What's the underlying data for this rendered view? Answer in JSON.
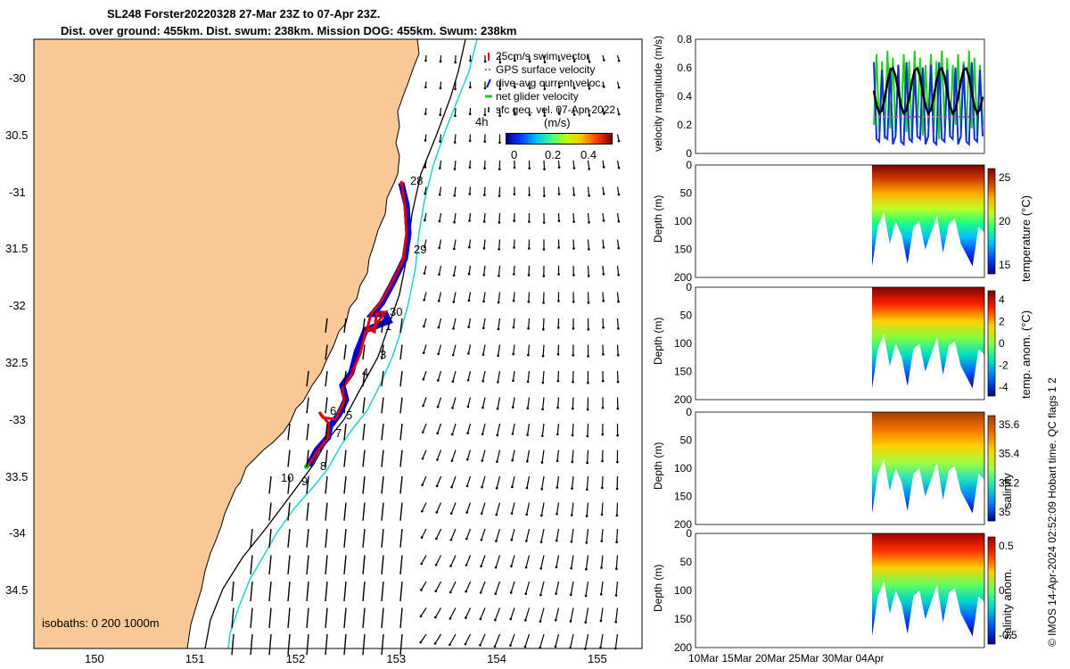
{
  "title": {
    "line1": "SL248 Forster20220328 27-Mar 23Z to 07-Apr 23Z.",
    "line2": "Dist. over ground: 455km. Dist. swum: 238km. Mission DOG: 455km. Swum: 238km"
  },
  "map": {
    "lat_ticks": [
      "-30",
      "30.5",
      "-31",
      "31.5",
      "-32",
      "32.5",
      "-33",
      "33.5",
      "-34",
      "34.5"
    ],
    "lon_ticks": [
      "150",
      "151",
      "152",
      "153",
      "154",
      "155"
    ],
    "legend": [
      "25cm/s swim vector",
      "GPS surface velocity",
      "dive-avg current veloc.",
      "net glider velocity",
      "sfc geo. vel. 07-Apr-2022"
    ],
    "colorbar_unit": "(m/s)",
    "colorbar_ticks": [
      "0",
      "0.2",
      "0.4"
    ],
    "isobaths_label": "isobaths: 0   200  1000m",
    "day_labels": [
      "4h",
      "28",
      "29",
      "30",
      "1",
      "3",
      "4",
      "6",
      "5",
      "7",
      "8",
      "9",
      "10"
    ],
    "colors": {
      "land": "#f8c897",
      "track": "#dd0000",
      "dive": "#0000cc",
      "isobath200": "#000000",
      "isobath1000": "#22d0d8"
    }
  },
  "panels": [
    {
      "ylabel": "velocity magnitude (m/s)",
      "yticks": [
        "0.8",
        "0.6",
        "0.4",
        "0.2",
        "0"
      ],
      "cb_label": "",
      "cb_ticks": []
    },
    {
      "ylabel": "Depth (m)",
      "yticks": [
        "0",
        "50",
        "100",
        "150",
        "200"
      ],
      "cb_label": "temperature (°C)",
      "cb_ticks": [
        "25",
        "20",
        "15"
      ]
    },
    {
      "ylabel": "Depth (m)",
      "yticks": [
        "0",
        "50",
        "100",
        "150",
        "200"
      ],
      "cb_label": "temp. anom. (°C)",
      "cb_ticks": [
        "4",
        "2",
        "0",
        "-2",
        "-4"
      ]
    },
    {
      "ylabel": "Depth (m)",
      "yticks": [
        "0",
        "50",
        "100",
        "150",
        "200"
      ],
      "cb_label": "salinity",
      "cb_ticks": [
        "35.6",
        "35.4",
        "35.2",
        "35"
      ]
    },
    {
      "ylabel": "Depth (m)",
      "yticks": [
        "0",
        "50",
        "100",
        "150",
        "200"
      ],
      "cb_label": "salinity anom.",
      "cb_ticks": [
        "0.5",
        "0",
        "-0.5"
      ]
    }
  ],
  "time_ticks": [
    "10Mar",
    "15Mar",
    "20Mar",
    "25Mar",
    "30Mar",
    "04Apr"
  ],
  "credit": "© IMOS 14-Apr-2024 02:52:09 Hobart time. QC flags 1  2"
}
